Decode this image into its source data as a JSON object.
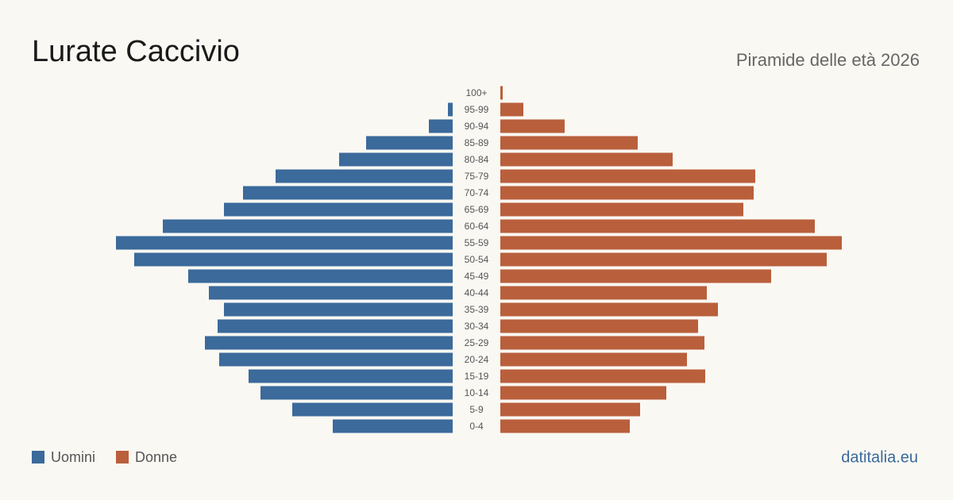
{
  "chart_data": {
    "type": "population-pyramid",
    "title": "Lurate Caccivio",
    "subtitle": "Piramide delle età 2026",
    "source": "datitalia.eu",
    "categories": [
      "100+",
      "95-99",
      "90-94",
      "85-89",
      "80-84",
      "75-79",
      "70-74",
      "65-69",
      "60-64",
      "55-59",
      "50-54",
      "45-49",
      "40-44",
      "35-39",
      "30-34",
      "25-29",
      "20-24",
      "15-19",
      "10-14",
      "5-9",
      "0-4"
    ],
    "series": [
      {
        "name": "Uomini",
        "color": "#3b6a9b",
        "values": [
          0,
          6,
          30,
          109,
          143,
          223,
          264,
          288,
          365,
          424,
          401,
          333,
          307,
          288,
          296,
          312,
          294,
          257,
          242,
          202,
          151
        ]
      },
      {
        "name": "Donne",
        "color": "#b95f3c",
        "values": [
          3,
          29,
          81,
          173,
          217,
          321,
          319,
          306,
          396,
          430,
          411,
          341,
          260,
          274,
          249,
          257,
          235,
          258,
          209,
          176,
          163
        ]
      }
    ]
  }
}
